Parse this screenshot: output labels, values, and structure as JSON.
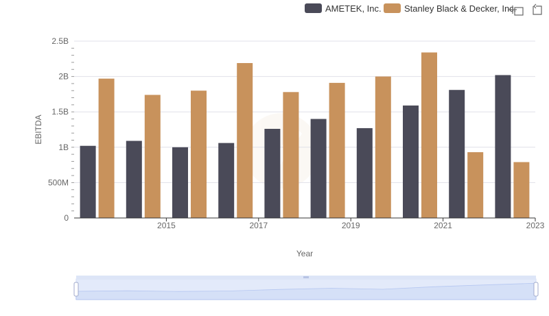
{
  "colors": {
    "series_1": "#4a4a58",
    "series_2": "#c8925c",
    "grid": "#e0e0e8",
    "axis": "#333333",
    "slider_fill": "#d6e0f7",
    "slider_line": "#8fa8e8"
  },
  "toolbar": {
    "icons": [
      "zoom-icon",
      "reset-icon"
    ]
  },
  "chart_data": {
    "type": "bar",
    "xlabel": "Year",
    "ylabel": "EBITDA",
    "ylim": [
      0,
      2500000000
    ],
    "y_ticks": [
      {
        "value": 0,
        "label": "0"
      },
      {
        "value": 500000000,
        "label": "500M"
      },
      {
        "value": 1000000000,
        "label": "1B"
      },
      {
        "value": 1500000000,
        "label": "1.5B"
      },
      {
        "value": 2000000000,
        "label": "2B"
      },
      {
        "value": 2500000000,
        "label": "2.5B"
      }
    ],
    "categories": [
      2014,
      2015,
      2016,
      2017,
      2018,
      2019,
      2020,
      2021,
      2022,
      2023
    ],
    "x_tick_labels": [
      "",
      "2015",
      "",
      "2017",
      "",
      "2019",
      "",
      "2021",
      "",
      "2023"
    ],
    "legend_position": "top-right",
    "grid": true,
    "series": [
      {
        "name": "AMETEK, Inc.",
        "values": [
          1020000000,
          1090000000,
          1000000000,
          1060000000,
          1260000000,
          1400000000,
          1270000000,
          1590000000,
          1810000000,
          2020000000
        ]
      },
      {
        "name": "Stanley Black & Decker, Inc.",
        "values": [
          1970000000,
          1740000000,
          1800000000,
          2190000000,
          1780000000,
          1910000000,
          2000000000,
          2340000000,
          930000000,
          790000000
        ]
      }
    ]
  }
}
